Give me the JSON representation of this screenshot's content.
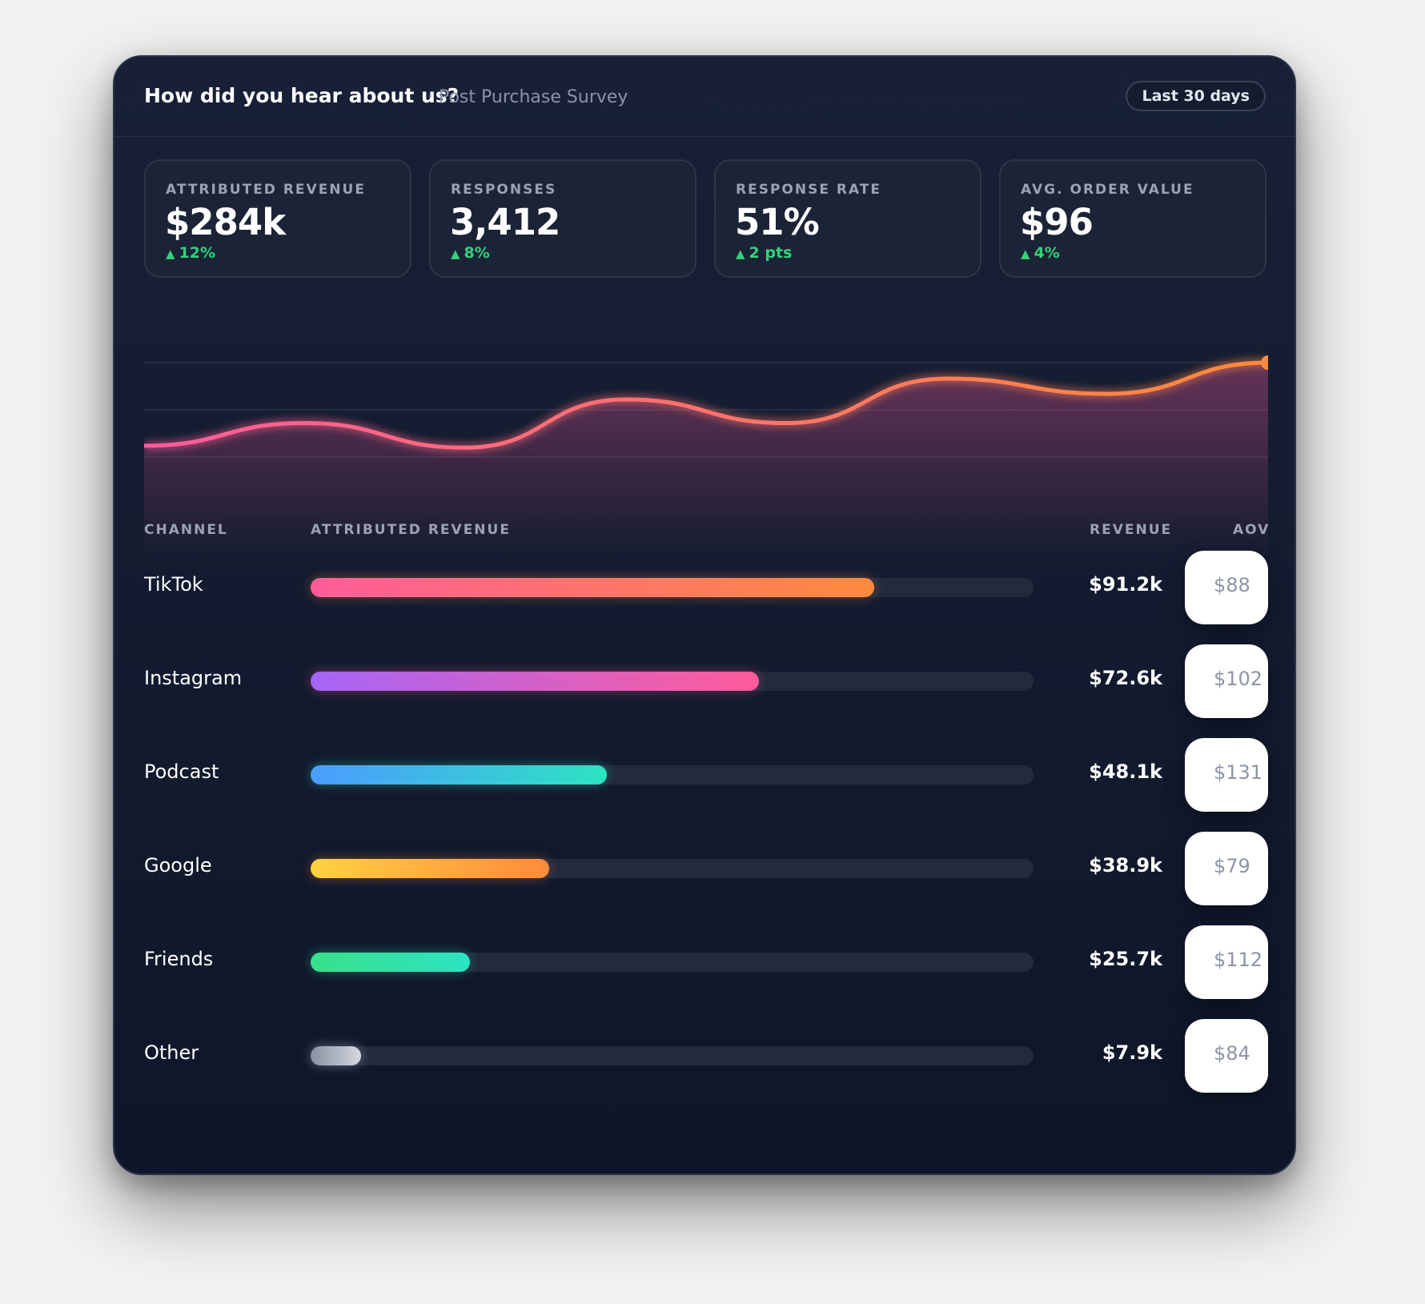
{
  "header": {
    "title": "How did you hear about us?",
    "subtitle": "· Post Purchase Survey",
    "range_button": "Last 30 days"
  },
  "kpis": [
    {
      "label": "ATTRIBUTED REVENUE",
      "value": "$284k",
      "delta": "12%"
    },
    {
      "label": "RESPONSES",
      "value": "3,412",
      "delta": "8%"
    },
    {
      "label": "RESPONSE RATE",
      "value": "51%",
      "delta": "2 pts"
    },
    {
      "label": "AVG. ORDER VALUE",
      "value": "$96",
      "delta": "4%"
    }
  ],
  "table": {
    "headers": {
      "channel": "CHANNEL",
      "attributed": "ATTRIBUTED REVENUE",
      "revenue": "REVENUE",
      "aov": "AOV"
    },
    "rows": [
      {
        "channel": "TikTok",
        "revenue": "$91.2k",
        "aov": "$88",
        "share": 0.78,
        "gradient": [
          "#ff5c9a",
          "#ff8a3d"
        ]
      },
      {
        "channel": "Instagram",
        "revenue": "$72.6k",
        "aov": "$102",
        "share": 0.62,
        "gradient": [
          "#a665f7",
          "#ff5c9a"
        ]
      },
      {
        "channel": "Podcast",
        "revenue": "$48.1k",
        "aov": "$131",
        "share": 0.41,
        "gradient": [
          "#4b9cff",
          "#2ee3c3"
        ]
      },
      {
        "channel": "Google",
        "revenue": "$38.9k",
        "aov": "$79",
        "share": 0.33,
        "gradient": [
          "#ffd23f",
          "#ff8a3d"
        ]
      },
      {
        "channel": "Friends",
        "revenue": "$25.7k",
        "aov": "$112",
        "share": 0.22,
        "gradient": [
          "#38e08a",
          "#2ee3c3"
        ]
      },
      {
        "channel": "Other",
        "revenue": "$7.9k",
        "aov": "$84",
        "share": 0.07,
        "gradient": [
          "#8891a3",
          "#d4d8e0"
        ]
      }
    ]
  },
  "chart_data": {
    "type": "area",
    "series": [
      {
        "values": [
          0.12,
          0.36,
          0.1,
          0.61,
          0.36,
          0.83,
          0.67,
          1.0
        ]
      }
    ],
    "colors": {
      "start": "#ff5c9a",
      "end": "#ff8a3d"
    },
    "grid": true
  }
}
